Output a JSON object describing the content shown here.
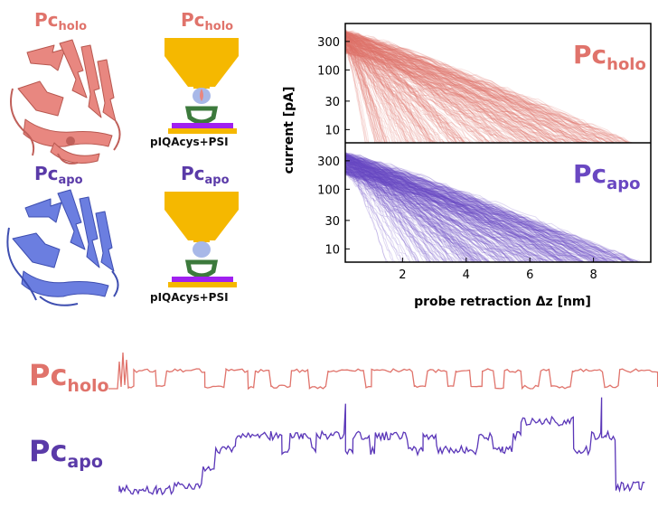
{
  "colors": {
    "holo": "#e0736b",
    "apo": "#6a48c2",
    "protein_holo": "#e88780",
    "protein_apo": "#6b7ee0",
    "gold": "#f5b800",
    "substrate": "#a020f0",
    "linker": "#3c7a3c",
    "tip_sphere": "#a8b8e8"
  },
  "labels": {
    "holo_main": "Pc",
    "holo_sub": "holo",
    "apo_main": "Pc",
    "apo_sub": "apo",
    "construct": "pIQAcys+PSI"
  },
  "chart_data": [
    {
      "type": "line",
      "panel": "retraction-current-decay",
      "ylabel": "current [pA]",
      "xlabel": "probe retraction Δz [nm]",
      "xlim": [
        0.2,
        9.8
      ],
      "ylim": [
        6,
        600
      ],
      "y_scale": "log",
      "x_ticks": [
        2,
        4,
        6,
        8
      ],
      "y_ticks": [
        10,
        30,
        100,
        300
      ],
      "series": [
        {
          "name": "Pc holo",
          "label_main": "Pc",
          "label_sub": "holo",
          "color": "#e0736b",
          "trace_count": 300,
          "start_current": [
            200,
            450
          ],
          "end_retraction": [
            0.8,
            9.6
          ]
        },
        {
          "name": "Pc apo",
          "label_main": "Pc",
          "label_sub": "apo",
          "color": "#6a48c2",
          "trace_count": 300,
          "start_current": [
            180,
            400
          ],
          "end_retraction": [
            1.5,
            9.8
          ]
        }
      ]
    },
    {
      "type": "line",
      "panel": "current-time-traces",
      "series": [
        {
          "name": "Pc holo",
          "label_main": "Pc",
          "label_sub": "holo",
          "color": "#e0736b",
          "levels": [
            "low",
            "high"
          ],
          "switching": "two-level telegraph"
        },
        {
          "name": "Pc apo",
          "label_main": "Pc",
          "label_sub": "apo",
          "color": "#6a48c2",
          "levels": [
            "low",
            "high"
          ],
          "switching": "noisy multi-level"
        }
      ]
    }
  ]
}
